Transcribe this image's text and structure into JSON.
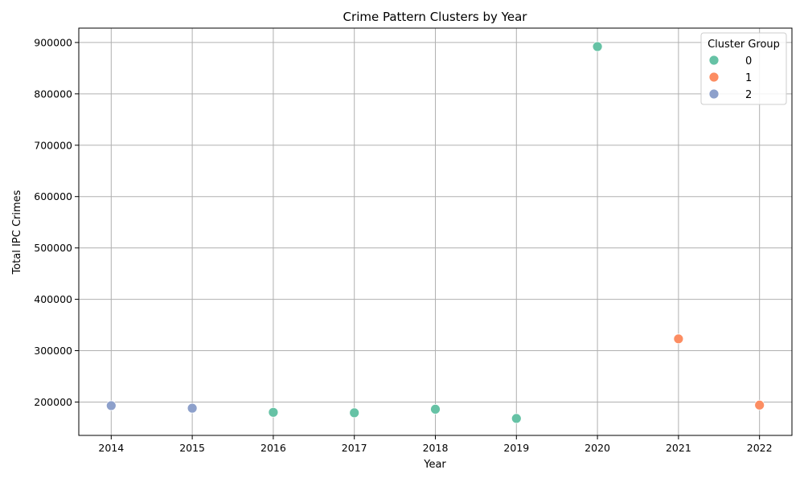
{
  "chart_data": {
    "type": "scatter",
    "title": "Crime Pattern Clusters by Year",
    "xlabel": "Year",
    "ylabel": "Total IPC Crimes",
    "xlim": [
      2013.6,
      2022.4
    ],
    "ylim": [
      135000,
      928000
    ],
    "x_ticks": [
      2014,
      2015,
      2016,
      2017,
      2018,
      2019,
      2020,
      2021,
      2022
    ],
    "y_ticks": [
      200000,
      300000,
      400000,
      500000,
      600000,
      700000,
      800000,
      900000
    ],
    "grid": true,
    "legend": {
      "title": "Cluster Group",
      "placement": "top-right"
    },
    "series": [
      {
        "name": "0",
        "color": "#66c2a5",
        "points": [
          {
            "x": 2016,
            "y": 180000
          },
          {
            "x": 2017,
            "y": 179000
          },
          {
            "x": 2018,
            "y": 186000
          },
          {
            "x": 2019,
            "y": 168000
          },
          {
            "x": 2020,
            "y": 892000
          }
        ]
      },
      {
        "name": "1",
        "color": "#fc8d62",
        "points": [
          {
            "x": 2021,
            "y": 323000
          },
          {
            "x": 2022,
            "y": 194000
          }
        ]
      },
      {
        "name": "2",
        "color": "#8da0cb",
        "points": [
          {
            "x": 2014,
            "y": 193000
          },
          {
            "x": 2015,
            "y": 188000
          }
        ]
      }
    ]
  }
}
